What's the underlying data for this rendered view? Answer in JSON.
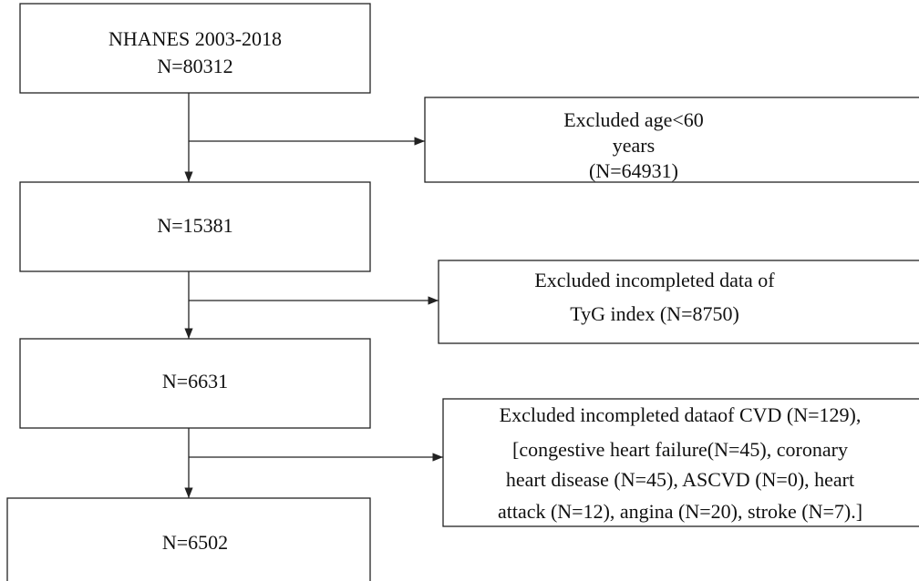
{
  "nodes": [
    {
      "lines": [
        "NHANES 2003-2018",
        "N=80312"
      ]
    },
    {
      "lines": [
        "N=15381"
      ]
    },
    {
      "lines": [
        "N=6631"
      ]
    },
    {
      "lines": [
        "N=6502"
      ]
    }
  ],
  "exclusions": [
    {
      "lines": [
        "Excluded age<60",
        "years",
        "(N=64931)"
      ]
    },
    {
      "lines": [
        "Excluded incompleted data of",
        "TyG index (N=8750)"
      ]
    },
    {
      "lines": [
        "Excluded incompleted dataof CVD (N=129),",
        "[congestive heart failure(N=45), coronary",
        "heart disease (N=45), ASCVD (N=0), heart",
        "attack (N=12), angina (N=20), stroke (N=7).]"
      ]
    }
  ]
}
